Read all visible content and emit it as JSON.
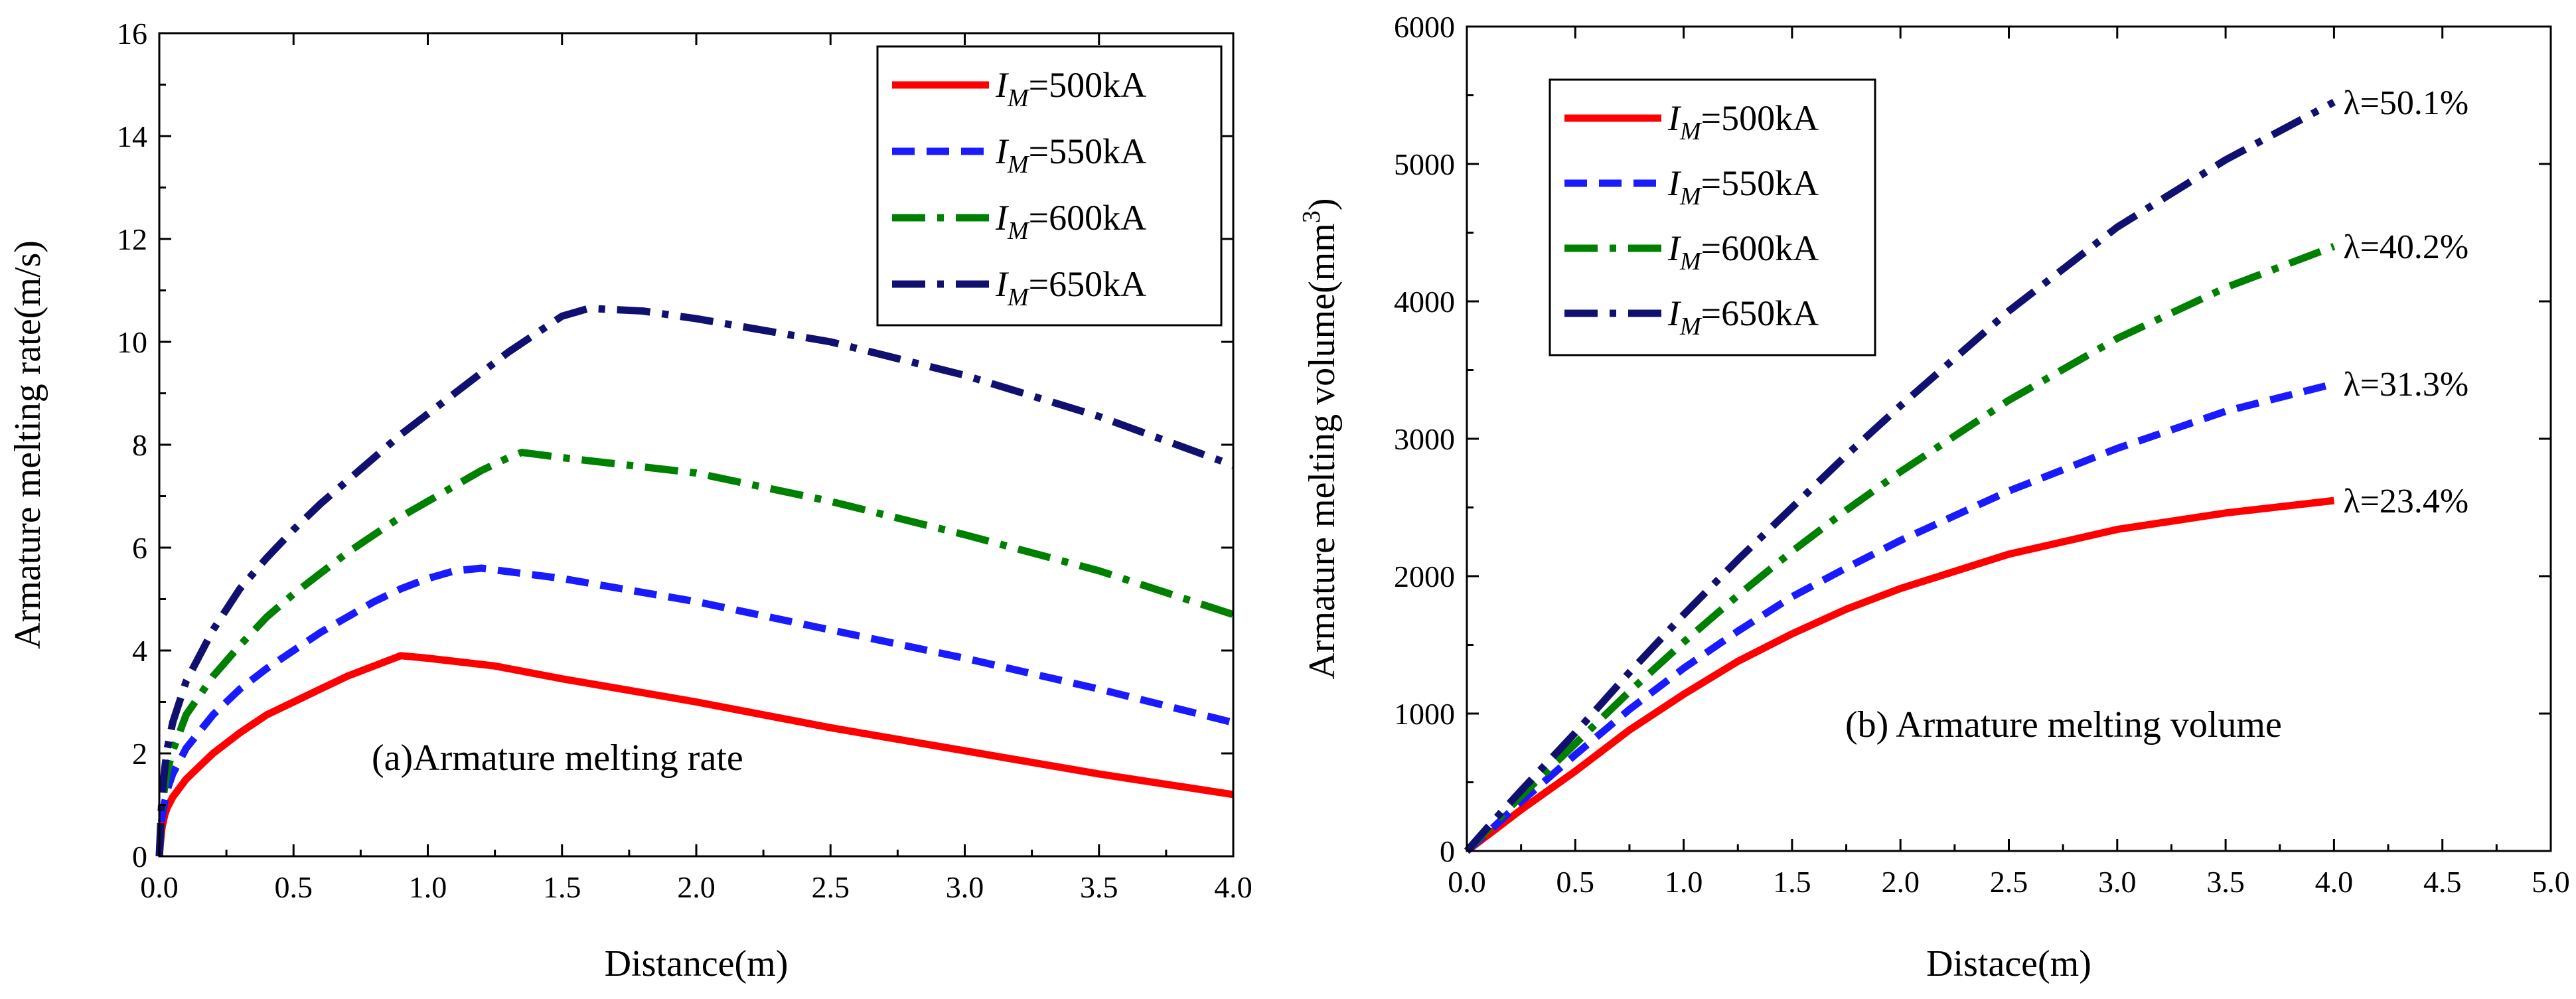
{
  "chart_data": [
    {
      "type": "line",
      "xlabel": "Distance(m)",
      "ylabel": "Armature melting rate(m/s)",
      "annotation": "(a)Armature melting rate",
      "xlim": [
        0,
        4
      ],
      "ylim": [
        0,
        16
      ],
      "xticks": [
        "0.0",
        "0.5",
        "1.0",
        "1.5",
        "2.0",
        "2.5",
        "3.0",
        "3.5",
        "4.0"
      ],
      "yticks": [
        "0",
        "2",
        "4",
        "6",
        "8",
        "10",
        "12",
        "14",
        "16"
      ],
      "grid": false,
      "legend_position": "top-right",
      "series": [
        {
          "name": "I_M=500kA",
          "label_main": "I",
          "label_sub": "M",
          "label_rest": "=500kA",
          "color": "#ff0000",
          "dash": "solid",
          "points": [
            [
              0,
              0
            ],
            [
              0.005,
              0.3
            ],
            [
              0.01,
              0.55
            ],
            [
              0.02,
              0.8
            ],
            [
              0.03,
              0.95
            ],
            [
              0.05,
              1.15
            ],
            [
              0.1,
              1.5
            ],
            [
              0.2,
              2.0
            ],
            [
              0.3,
              2.4
            ],
            [
              0.4,
              2.75
            ],
            [
              0.5,
              3.0
            ],
            [
              0.6,
              3.25
            ],
            [
              0.7,
              3.5
            ],
            [
              0.8,
              3.7
            ],
            [
              0.9,
              3.9
            ],
            [
              1.0,
              3.85
            ],
            [
              1.25,
              3.7
            ],
            [
              1.5,
              3.45
            ],
            [
              2.0,
              3.0
            ],
            [
              2.5,
              2.5
            ],
            [
              3.0,
              2.05
            ],
            [
              3.5,
              1.6
            ],
            [
              4.0,
              1.2
            ]
          ]
        },
        {
          "name": "I_M=550kA",
          "label_main": "I",
          "label_sub": "M",
          "label_rest": "=550kA",
          "color": "#1a1aff",
          "dash": "dash",
          "points": [
            [
              0,
              0
            ],
            [
              0.005,
              0.4
            ],
            [
              0.01,
              0.75
            ],
            [
              0.02,
              1.05
            ],
            [
              0.03,
              1.3
            ],
            [
              0.05,
              1.6
            ],
            [
              0.1,
              2.1
            ],
            [
              0.2,
              2.75
            ],
            [
              0.3,
              3.25
            ],
            [
              0.4,
              3.65
            ],
            [
              0.5,
              4.0
            ],
            [
              0.6,
              4.35
            ],
            [
              0.7,
              4.65
            ],
            [
              0.8,
              4.95
            ],
            [
              0.9,
              5.2
            ],
            [
              1.0,
              5.4
            ],
            [
              1.1,
              5.55
            ],
            [
              1.2,
              5.6
            ],
            [
              1.5,
              5.4
            ],
            [
              2.0,
              4.95
            ],
            [
              2.5,
              4.4
            ],
            [
              3.0,
              3.85
            ],
            [
              3.5,
              3.25
            ],
            [
              4.0,
              2.6
            ]
          ]
        },
        {
          "name": "I_M=600kA",
          "label_main": "I",
          "label_sub": "M",
          "label_rest": "=600kA",
          "color": "#008000",
          "dash": "dashdot",
          "points": [
            [
              0,
              0
            ],
            [
              0.005,
              0.5
            ],
            [
              0.01,
              0.95
            ],
            [
              0.02,
              1.35
            ],
            [
              0.03,
              1.65
            ],
            [
              0.05,
              2.05
            ],
            [
              0.1,
              2.75
            ],
            [
              0.2,
              3.5
            ],
            [
              0.3,
              4.1
            ],
            [
              0.4,
              4.65
            ],
            [
              0.5,
              5.1
            ],
            [
              0.6,
              5.5
            ],
            [
              0.7,
              5.9
            ],
            [
              0.8,
              6.25
            ],
            [
              0.9,
              6.6
            ],
            [
              1.0,
              6.9
            ],
            [
              1.1,
              7.2
            ],
            [
              1.2,
              7.5
            ],
            [
              1.3,
              7.75
            ],
            [
              1.35,
              7.85
            ],
            [
              1.5,
              7.75
            ],
            [
              2.0,
              7.45
            ],
            [
              2.5,
              6.9
            ],
            [
              3.0,
              6.25
            ],
            [
              3.5,
              5.55
            ],
            [
              4.0,
              4.7
            ]
          ]
        },
        {
          "name": "I_M=650kA",
          "label_main": "I",
          "label_sub": "M",
          "label_rest": "=650kA",
          "color": "#101070",
          "dash": "dashdot",
          "points": [
            [
              0,
              0
            ],
            [
              0.005,
              0.6
            ],
            [
              0.01,
              1.15
            ],
            [
              0.02,
              1.7
            ],
            [
              0.03,
              2.1
            ],
            [
              0.05,
              2.6
            ],
            [
              0.1,
              3.4
            ],
            [
              0.2,
              4.4
            ],
            [
              0.3,
              5.2
            ],
            [
              0.4,
              5.8
            ],
            [
              0.5,
              6.35
            ],
            [
              0.6,
              6.85
            ],
            [
              0.7,
              7.3
            ],
            [
              0.8,
              7.75
            ],
            [
              0.9,
              8.2
            ],
            [
              1.0,
              8.6
            ],
            [
              1.1,
              9.0
            ],
            [
              1.2,
              9.4
            ],
            [
              1.3,
              9.8
            ],
            [
              1.4,
              10.15
            ],
            [
              1.5,
              10.5
            ],
            [
              1.6,
              10.65
            ],
            [
              1.8,
              10.6
            ],
            [
              2.0,
              10.45
            ],
            [
              2.5,
              10.0
            ],
            [
              3.0,
              9.35
            ],
            [
              3.5,
              8.55
            ],
            [
              4.0,
              7.6
            ]
          ]
        }
      ]
    },
    {
      "type": "line",
      "xlabel": "Distace(m)",
      "ylabel": "Armature melting volume(mm",
      "ylabel_sup": "3",
      "ylabel_close": ")",
      "annotation": "(b) Armature melting volume",
      "xlim": [
        0,
        5
      ],
      "ylim": [
        0,
        6000
      ],
      "xticks": [
        "0.0",
        "0.5",
        "1.0",
        "1.5",
        "2.0",
        "2.5",
        "3.0",
        "3.5",
        "4.0",
        "4.5",
        "5.0"
      ],
      "yticks": [
        "0",
        "1000",
        "2000",
        "3000",
        "4000",
        "5000",
        "6000"
      ],
      "grid": false,
      "legend_position": "top-left",
      "series": [
        {
          "name": "I_M=500kA",
          "label_main": "I",
          "label_sub": "M",
          "label_rest": "=500kA",
          "color": "#ff0000",
          "dash": "solid",
          "end_label": "λ=23.4%",
          "points": [
            [
              0,
              0
            ],
            [
              0.1,
              120
            ],
            [
              0.25,
              300
            ],
            [
              0.5,
              580
            ],
            [
              0.75,
              880
            ],
            [
              1.0,
              1140
            ],
            [
              1.25,
              1380
            ],
            [
              1.5,
              1580
            ],
            [
              1.75,
              1760
            ],
            [
              2.0,
              1910
            ],
            [
              2.5,
              2160
            ],
            [
              3.0,
              2340
            ],
            [
              3.5,
              2460
            ],
            [
              4.0,
              2550
            ]
          ]
        },
        {
          "name": "I_M=550kA",
          "label_main": "I",
          "label_sub": "M",
          "label_rest": "=550kA",
          "color": "#1a1aff",
          "dash": "dash",
          "end_label": "λ=31.3%",
          "points": [
            [
              0,
              0
            ],
            [
              0.1,
              140
            ],
            [
              0.25,
              360
            ],
            [
              0.5,
              700
            ],
            [
              0.75,
              1030
            ],
            [
              1.0,
              1330
            ],
            [
              1.25,
              1600
            ],
            [
              1.5,
              1850
            ],
            [
              1.75,
              2060
            ],
            [
              2.0,
              2260
            ],
            [
              2.5,
              2620
            ],
            [
              3.0,
              2930
            ],
            [
              3.5,
              3200
            ],
            [
              4.0,
              3400
            ]
          ]
        },
        {
          "name": "I_M=600kA",
          "label_main": "I",
          "label_sub": "M",
          "label_rest": "=600kA",
          "color": "#008000",
          "dash": "dashdot",
          "end_label": "λ=40.2%",
          "points": [
            [
              0,
              0
            ],
            [
              0.1,
              160
            ],
            [
              0.25,
              400
            ],
            [
              0.5,
              780
            ],
            [
              0.75,
              1160
            ],
            [
              1.0,
              1520
            ],
            [
              1.25,
              1860
            ],
            [
              1.5,
              2180
            ],
            [
              1.75,
              2480
            ],
            [
              2.0,
              2760
            ],
            [
              2.5,
              3280
            ],
            [
              3.0,
              3730
            ],
            [
              3.5,
              4100
            ],
            [
              4.0,
              4400
            ]
          ]
        },
        {
          "name": "I_M=650kA",
          "label_main": "I",
          "label_sub": "M",
          "label_rest": "=650kA",
          "color": "#101070",
          "dash": "dashdot",
          "end_label": "λ=50.1%",
          "points": [
            [
              0,
              0
            ],
            [
              0.1,
              180
            ],
            [
              0.25,
              440
            ],
            [
              0.5,
              860
            ],
            [
              0.75,
              1300
            ],
            [
              1.0,
              1720
            ],
            [
              1.25,
              2120
            ],
            [
              1.5,
              2500
            ],
            [
              1.75,
              2880
            ],
            [
              2.0,
              3240
            ],
            [
              2.5,
              3930
            ],
            [
              3.0,
              4540
            ],
            [
              3.5,
              5030
            ],
            [
              4.0,
              5450
            ]
          ]
        }
      ]
    }
  ]
}
